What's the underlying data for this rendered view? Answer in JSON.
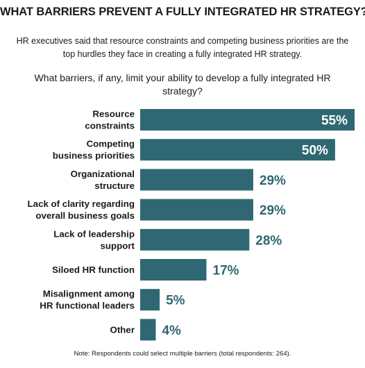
{
  "title": "WHAT BARRIERS PREVENT A FULLY INTEGRATED HR STRATEGY?",
  "subtitle": "HR executives said that resource constraints and competing business priorities are the top hurdles they face in creating a fully integrated HR strategy.",
  "question": "What barriers, if any, limit your ability to develop a fully integrated HR strategy?",
  "note": "Note: Respondents could select multiple barriers (total respondents: 264).",
  "colors": {
    "bar": "#2f6872",
    "label_inside": "#ffffff",
    "label_outside": "#2f6872"
  },
  "chart_data": {
    "type": "bar",
    "orientation": "horizontal",
    "categories": [
      [
        "Resource",
        "constraints"
      ],
      [
        "Competing",
        "business priorities"
      ],
      [
        "Organizational",
        "structure"
      ],
      [
        "Lack of clarity regarding",
        "overall business goals"
      ],
      [
        "Lack of leadership",
        "support"
      ],
      [
        "Siloed HR function"
      ],
      [
        "Misalignment among",
        "HR functional leaders"
      ],
      [
        "Other"
      ]
    ],
    "values": [
      55,
      50,
      29,
      29,
      28,
      17,
      5,
      4
    ],
    "value_labels": [
      "55%",
      "50%",
      "29%",
      "29%",
      "28%",
      "17%",
      "5%",
      "4%"
    ],
    "xlim": [
      0,
      55
    ],
    "grid": false,
    "legend": "none"
  }
}
